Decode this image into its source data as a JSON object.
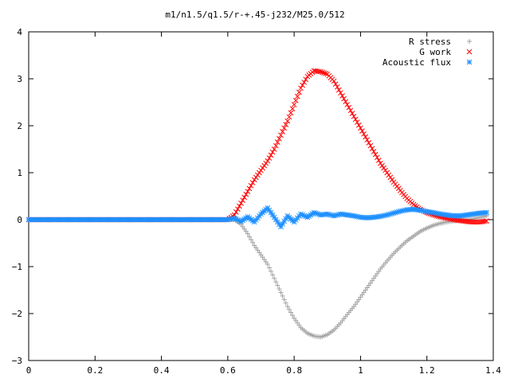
{
  "chart_data": {
    "type": "scatter",
    "title": "m1/n1.5/q1.5/r-+.45-j232/M25.0/512",
    "xlabel": "",
    "ylabel": "",
    "xlim": [
      0,
      1.4
    ],
    "ylim": [
      -3,
      4
    ],
    "xticks": [
      "0",
      "0.2",
      "0.4",
      "0.6",
      "0.8",
      "1",
      "1.2",
      "1.4"
    ],
    "yticks": [
      "4",
      "3",
      "2",
      "1",
      "0",
      "−1",
      "−2",
      "−3"
    ],
    "grid": false,
    "legend_position": "top-right",
    "series": [
      {
        "name": "R stress",
        "marker": "plus",
        "color": "#a0a0a0",
        "points": [
          [
            0.0,
            0
          ],
          [
            0.1,
            0
          ],
          [
            0.2,
            0
          ],
          [
            0.3,
            0
          ],
          [
            0.4,
            0
          ],
          [
            0.5,
            0
          ],
          [
            0.6,
            0
          ],
          [
            0.62,
            0
          ],
          [
            0.64,
            -0.1
          ],
          [
            0.66,
            -0.3
          ],
          [
            0.68,
            -0.55
          ],
          [
            0.7,
            -0.75
          ],
          [
            0.72,
            -0.95
          ],
          [
            0.74,
            -1.25
          ],
          [
            0.76,
            -1.55
          ],
          [
            0.78,
            -1.85
          ],
          [
            0.8,
            -2.1
          ],
          [
            0.82,
            -2.3
          ],
          [
            0.84,
            -2.42
          ],
          [
            0.86,
            -2.48
          ],
          [
            0.88,
            -2.5
          ],
          [
            0.9,
            -2.45
          ],
          [
            0.92,
            -2.35
          ],
          [
            0.94,
            -2.2
          ],
          [
            0.96,
            -2.02
          ],
          [
            0.98,
            -1.85
          ],
          [
            1.0,
            -1.65
          ],
          [
            1.02,
            -1.45
          ],
          [
            1.04,
            -1.25
          ],
          [
            1.06,
            -1.05
          ],
          [
            1.08,
            -0.88
          ],
          [
            1.1,
            -0.72
          ],
          [
            1.12,
            -0.58
          ],
          [
            1.14,
            -0.45
          ],
          [
            1.16,
            -0.35
          ],
          [
            1.18,
            -0.25
          ],
          [
            1.2,
            -0.18
          ],
          [
            1.22,
            -0.12
          ],
          [
            1.24,
            -0.08
          ],
          [
            1.26,
            -0.05
          ],
          [
            1.28,
            -0.03
          ],
          [
            1.3,
            -0.02
          ],
          [
            1.32,
            0.0
          ],
          [
            1.34,
            0.02
          ],
          [
            1.36,
            0.05
          ],
          [
            1.38,
            0.08
          ]
        ]
      },
      {
        "name": "G work",
        "marker": "cross",
        "color": "#ff0000",
        "points": [
          [
            0.0,
            0
          ],
          [
            0.1,
            0
          ],
          [
            0.2,
            0
          ],
          [
            0.3,
            0
          ],
          [
            0.4,
            0
          ],
          [
            0.5,
            0
          ],
          [
            0.6,
            0
          ],
          [
            0.62,
            0.1
          ],
          [
            0.64,
            0.35
          ],
          [
            0.66,
            0.6
          ],
          [
            0.68,
            0.85
          ],
          [
            0.7,
            1.05
          ],
          [
            0.72,
            1.25
          ],
          [
            0.74,
            1.5
          ],
          [
            0.76,
            1.8
          ],
          [
            0.78,
            2.1
          ],
          [
            0.8,
            2.45
          ],
          [
            0.82,
            2.8
          ],
          [
            0.84,
            3.05
          ],
          [
            0.86,
            3.17
          ],
          [
            0.88,
            3.15
          ],
          [
            0.9,
            3.1
          ],
          [
            0.92,
            2.95
          ],
          [
            0.94,
            2.7
          ],
          [
            0.96,
            2.45
          ],
          [
            0.98,
            2.2
          ],
          [
            1.0,
            1.95
          ],
          [
            1.02,
            1.7
          ],
          [
            1.04,
            1.45
          ],
          [
            1.06,
            1.2
          ],
          [
            1.08,
            1.0
          ],
          [
            1.1,
            0.8
          ],
          [
            1.12,
            0.62
          ],
          [
            1.14,
            0.45
          ],
          [
            1.16,
            0.32
          ],
          [
            1.18,
            0.22
          ],
          [
            1.2,
            0.15
          ],
          [
            1.22,
            0.1
          ],
          [
            1.24,
            0.06
          ],
          [
            1.26,
            0.03
          ],
          [
            1.28,
            0.0
          ],
          [
            1.3,
            -0.02
          ],
          [
            1.32,
            -0.04
          ],
          [
            1.34,
            -0.05
          ],
          [
            1.36,
            -0.05
          ],
          [
            1.38,
            -0.03
          ]
        ]
      },
      {
        "name": "Acoustic flux",
        "marker": "star",
        "color": "#1e90ff",
        "points": [
          [
            0.0,
            0
          ],
          [
            0.1,
            0
          ],
          [
            0.2,
            0
          ],
          [
            0.3,
            0
          ],
          [
            0.4,
            0
          ],
          [
            0.5,
            0
          ],
          [
            0.6,
            0
          ],
          [
            0.62,
            0.03
          ],
          [
            0.64,
            -0.04
          ],
          [
            0.66,
            0.06
          ],
          [
            0.68,
            -0.05
          ],
          [
            0.7,
            0.12
          ],
          [
            0.72,
            0.25
          ],
          [
            0.74,
            0.05
          ],
          [
            0.76,
            -0.15
          ],
          [
            0.78,
            0.08
          ],
          [
            0.8,
            -0.05
          ],
          [
            0.82,
            0.12
          ],
          [
            0.84,
            0.05
          ],
          [
            0.86,
            0.15
          ],
          [
            0.88,
            0.1
          ],
          [
            0.9,
            0.12
          ],
          [
            0.92,
            0.08
          ],
          [
            0.94,
            0.12
          ],
          [
            0.96,
            0.1
          ],
          [
            0.98,
            0.08
          ],
          [
            1.0,
            0.05
          ],
          [
            1.02,
            0.04
          ],
          [
            1.04,
            0.05
          ],
          [
            1.06,
            0.07
          ],
          [
            1.08,
            0.1
          ],
          [
            1.1,
            0.14
          ],
          [
            1.12,
            0.18
          ],
          [
            1.14,
            0.21
          ],
          [
            1.16,
            0.22
          ],
          [
            1.18,
            0.2
          ],
          [
            1.2,
            0.17
          ],
          [
            1.22,
            0.15
          ],
          [
            1.24,
            0.12
          ],
          [
            1.26,
            0.1
          ],
          [
            1.28,
            0.08
          ],
          [
            1.3,
            0.08
          ],
          [
            1.32,
            0.1
          ],
          [
            1.34,
            0.12
          ],
          [
            1.36,
            0.14
          ],
          [
            1.38,
            0.15
          ]
        ]
      }
    ]
  }
}
